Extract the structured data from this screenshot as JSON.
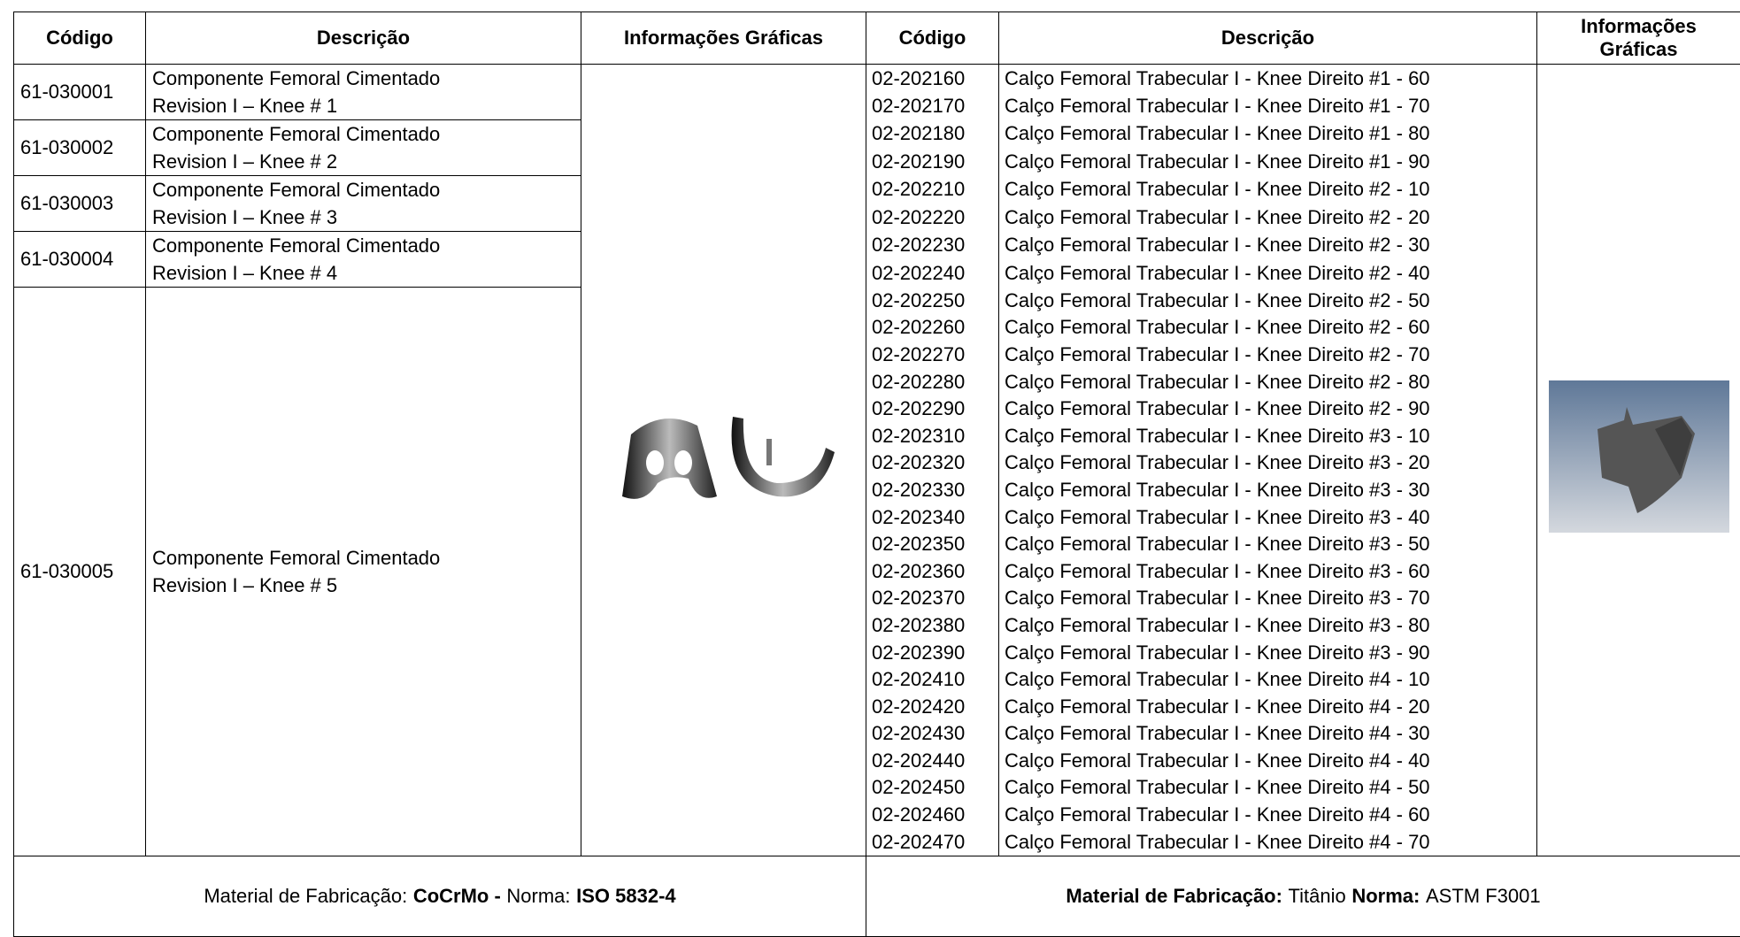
{
  "left": {
    "headers": [
      "Código",
      "Descrição",
      "Informações Gráficas"
    ],
    "rows": [
      {
        "code": "61-030001",
        "lines": [
          "Componente Femoral Cimentado",
          "Revision I – Knee # 1"
        ]
      },
      {
        "code": "61-030002",
        "lines": [
          "Componente Femoral Cimentado",
          "Revision I – Knee # 2"
        ]
      },
      {
        "code": "61-030003",
        "lines": [
          "Componente Femoral Cimentado",
          "Revision I – Knee # 3"
        ]
      },
      {
        "code": "61-030004",
        "lines": [
          "Componente Femoral Cimentado",
          "Revision I – Knee # 4"
        ]
      },
      {
        "code": "61-030005",
        "lines": [
          "Componente Femoral Cimentado",
          "Revision I – Knee # 5"
        ]
      }
    ],
    "footer": [
      {
        "text": "Material de Fabricação:",
        "bold": false
      },
      {
        "text": "CoCrMo -",
        "bold": true
      },
      {
        "text": "Norma:",
        "bold": false
      },
      {
        "text": "ISO 5832-4",
        "bold": true
      }
    ]
  },
  "right": {
    "headers": [
      "Código",
      "Descrição",
      "Informações Gráficas"
    ],
    "rows": [
      [
        "02-202160",
        "Calço Femoral Trabecular I - Knee Direito #1 - 60"
      ],
      [
        "02-202170",
        "Calço Femoral Trabecular I - Knee Direito #1 - 70"
      ],
      [
        "02-202180",
        "Calço Femoral Trabecular I - Knee Direito #1 - 80"
      ],
      [
        "02-202190",
        "Calço Femoral Trabecular I - Knee Direito #1 - 90"
      ],
      [
        "02-202210",
        "Calço Femoral Trabecular I - Knee Direito #2 - 10"
      ],
      [
        "02-202220",
        "Calço Femoral Trabecular I - Knee Direito #2 - 20"
      ],
      [
        "02-202230",
        "Calço Femoral Trabecular I - Knee Direito #2 - 30"
      ],
      [
        "02-202240",
        "Calço Femoral Trabecular I - Knee Direito #2 - 40"
      ],
      [
        "02-202250",
        "Calço Femoral Trabecular I - Knee Direito #2 - 50"
      ],
      [
        "02-202260",
        "Calço Femoral Trabecular I - Knee Direito #2 - 60"
      ],
      [
        "02-202270",
        "Calço Femoral Trabecular I - Knee Direito #2 - 70"
      ],
      [
        "02-202280",
        "Calço Femoral Trabecular I - Knee Direito #2 - 80"
      ],
      [
        "02-202290",
        "Calço Femoral Trabecular I - Knee Direito #2 - 90"
      ],
      [
        "02-202310",
        "Calço Femoral Trabecular I - Knee Direito #3 - 10"
      ],
      [
        "02-202320",
        "Calço Femoral Trabecular I - Knee Direito #3 - 20"
      ],
      [
        "02-202330",
        "Calço Femoral Trabecular I - Knee Direito #3 - 30"
      ],
      [
        "02-202340",
        "Calço Femoral Trabecular I - Knee Direito #3 - 40"
      ],
      [
        "02-202350",
        "Calço Femoral Trabecular I - Knee Direito #3 - 50"
      ],
      [
        "02-202360",
        "Calço Femoral Trabecular I - Knee Direito #3 - 60"
      ],
      [
        "02-202370",
        "Calço Femoral Trabecular I - Knee Direito #3 - 70"
      ],
      [
        "02-202380",
        "Calço Femoral Trabecular I - Knee Direito #3 - 80"
      ],
      [
        "02-202390",
        "Calço Femoral Trabecular I - Knee Direito #3 - 90"
      ],
      [
        "02-202410",
        "Calço Femoral Trabecular I - Knee Direito #4 - 10"
      ],
      [
        "02-202420",
        "Calço Femoral Trabecular I - Knee Direito #4 - 20"
      ],
      [
        "02-202430",
        "Calço Femoral Trabecular I - Knee Direito #4 - 30"
      ],
      [
        "02-202440",
        "Calço Femoral Trabecular I - Knee Direito #4 - 40"
      ],
      [
        "02-202450",
        "Calço Femoral Trabecular I - Knee Direito #4 - 50"
      ],
      [
        "02-202460",
        "Calço Femoral Trabecular I - Knee Direito #4 - 60"
      ],
      [
        "02-202470",
        "Calço Femoral Trabecular I - Knee Direito #4 - 70"
      ]
    ],
    "footer": [
      {
        "text": "Material de Fabricação:",
        "bold": true
      },
      {
        "text": "Titânio",
        "bold": false
      },
      {
        "text": "Norma:",
        "bold": true
      },
      {
        "text": "ASTM F3001",
        "bold": false
      }
    ]
  }
}
